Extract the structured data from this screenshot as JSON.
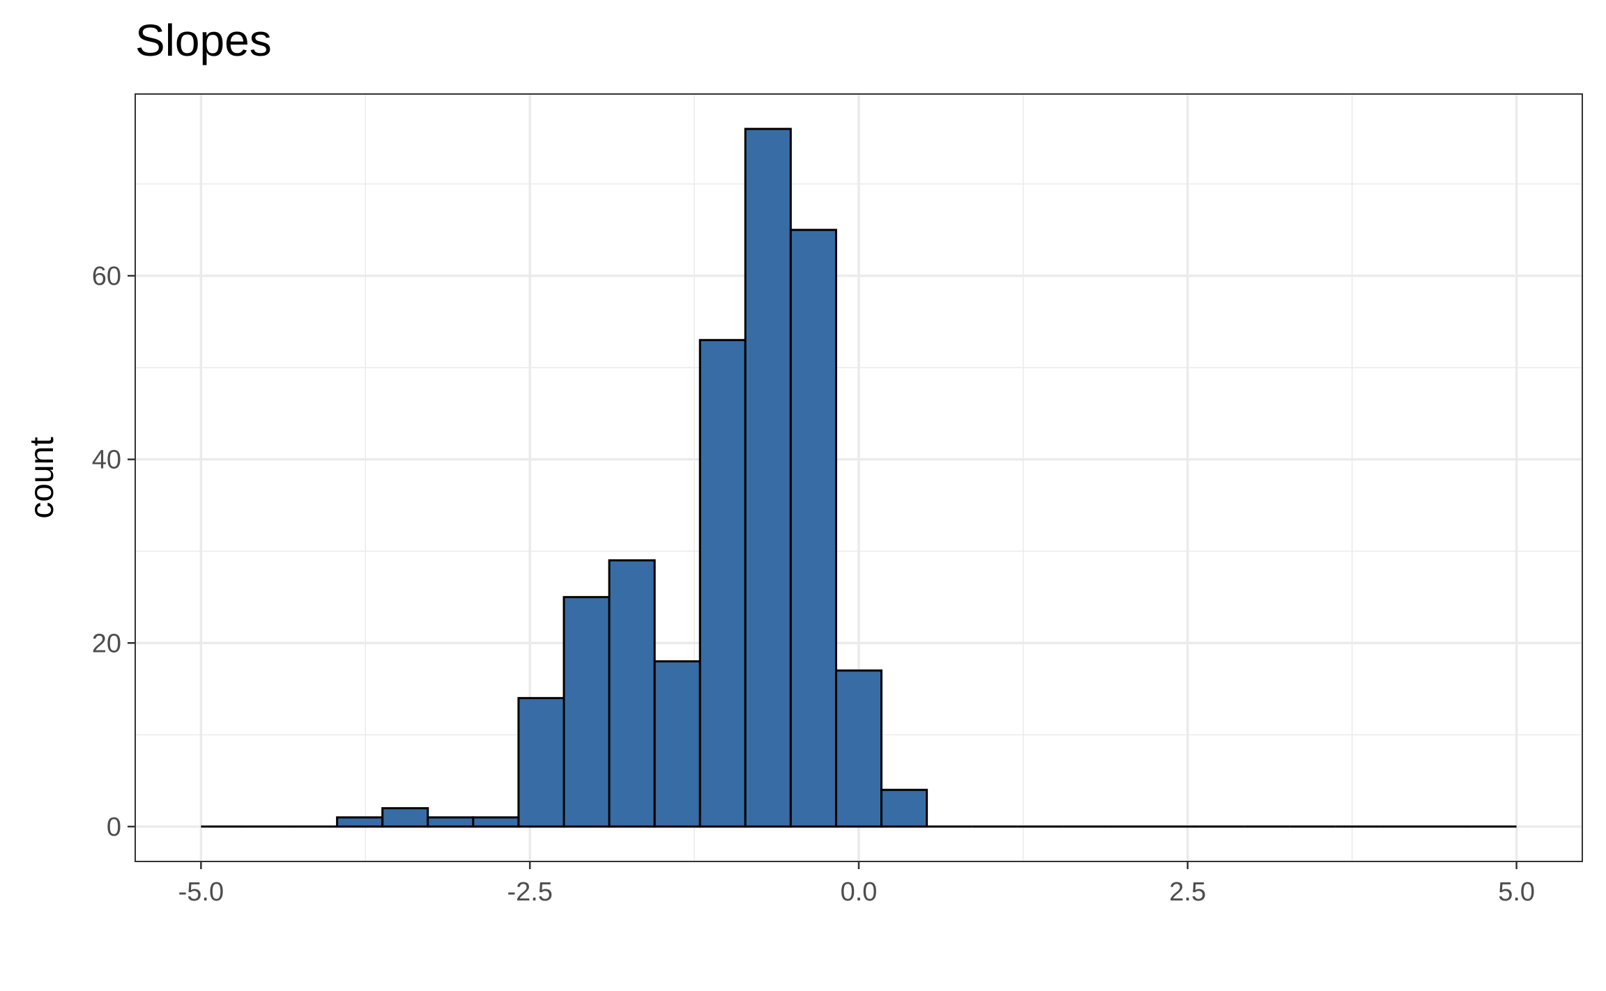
{
  "chart_data": {
    "type": "histogram",
    "title": "Slopes",
    "xlabel": "",
    "ylabel": "count",
    "bin_edges_range": [
      -5,
      5
    ],
    "bin_count": 29,
    "counts": [
      0,
      0,
      0,
      1,
      2,
      1,
      1,
      14,
      25,
      29,
      18,
      53,
      76,
      65,
      17,
      4,
      0,
      0,
      0,
      0,
      0,
      0,
      0,
      0,
      0,
      0,
      0,
      0,
      0
    ],
    "xlim": [
      -5.5,
      5.5
    ],
    "ylim": [
      -3.8,
      79.8
    ],
    "x_ticks": [
      -5.0,
      -2.5,
      0.0,
      2.5,
      5.0
    ],
    "x_tick_labels": [
      "-5.0",
      "-2.5",
      "0.0",
      "2.5",
      "5.0"
    ],
    "y_ticks": [
      0,
      20,
      40,
      60
    ],
    "y_tick_labels": [
      "0",
      "20",
      "40",
      "60"
    ],
    "grid": true,
    "bar_fill": "#386CA5",
    "bar_outline": "#000000",
    "grid_color": "#EBEBEB"
  }
}
